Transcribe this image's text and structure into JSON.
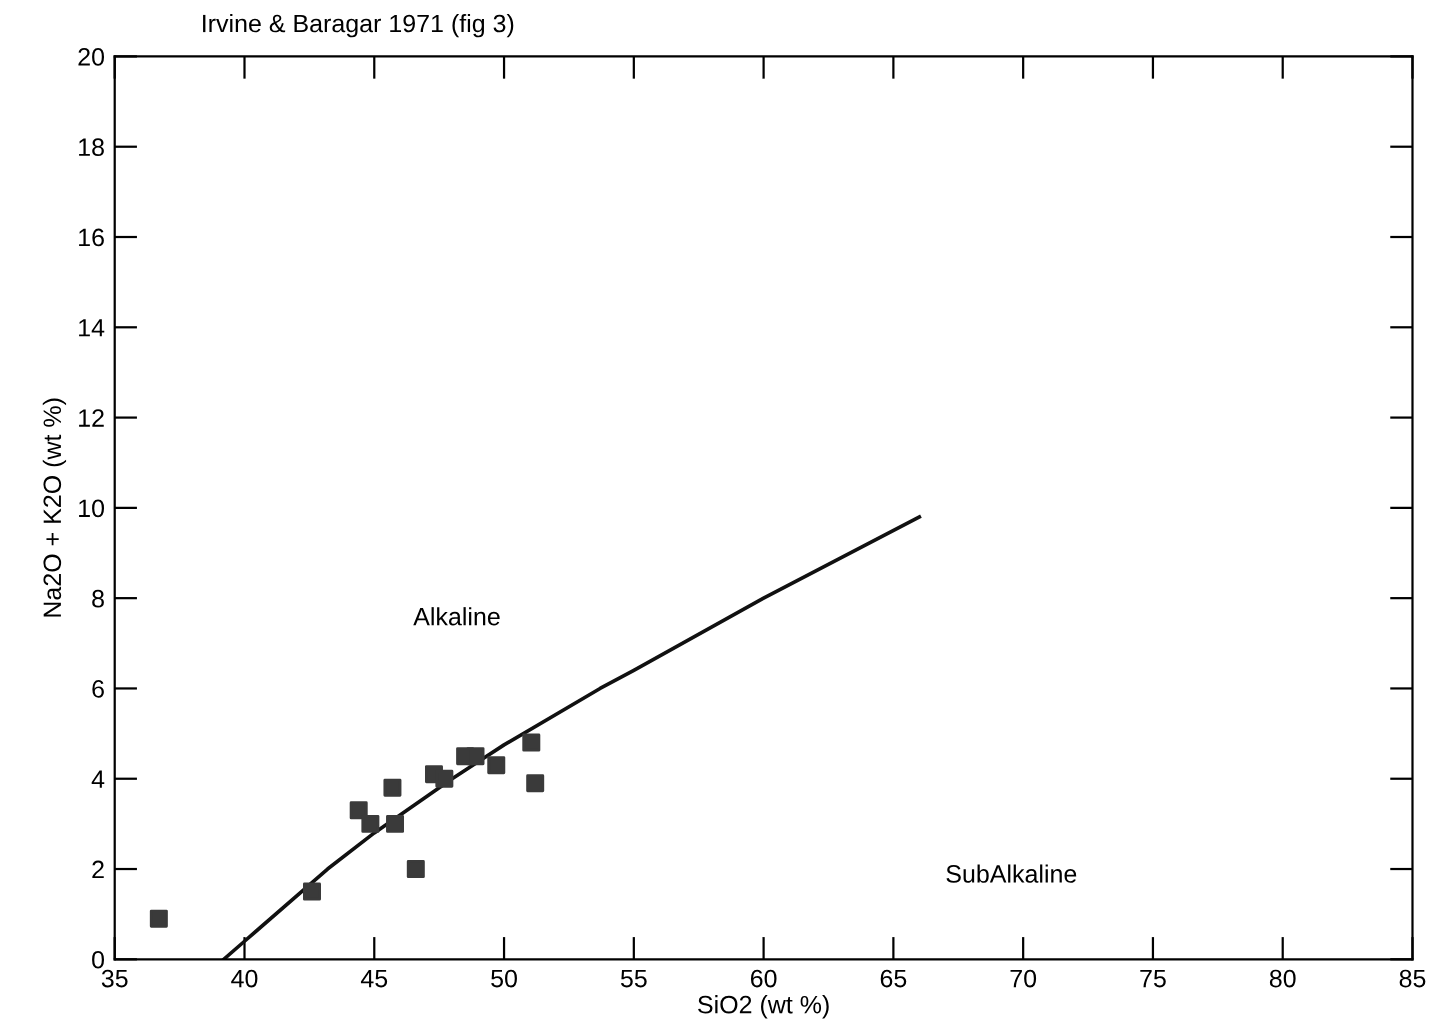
{
  "chart_data": {
    "type": "scatter",
    "title": "Irvine & Baragar 1971 (fig 3)",
    "xlabel": "SiO2 (wt %)",
    "ylabel": "Na2O + K2O (wt %)",
    "xlim": [
      35,
      85
    ],
    "xticks": [
      35,
      40,
      45,
      50,
      55,
      60,
      65,
      70,
      75,
      80,
      85
    ],
    "ylim": [
      0,
      20
    ],
    "yticks": [
      0,
      2,
      4,
      6,
      8,
      10,
      12,
      14,
      16,
      18,
      20
    ],
    "grid": false,
    "legend": false,
    "series": [
      {
        "marker": "square",
        "color": "#3a3a3a",
        "x": [
          36.7,
          42.6,
          44.4,
          44.85,
          45.7,
          45.8,
          46.6,
          47.3,
          47.7,
          48.5,
          48.9,
          49.7,
          51.05,
          51.2
        ],
        "values": [
          0.9,
          1.5,
          3.3,
          3.0,
          3.8,
          3.0,
          2.0,
          4.1,
          4.0,
          4.5,
          4.5,
          4.3,
          4.8,
          3.9
        ]
      },
      {
        "type": "line",
        "color": "#111111",
        "line_style": "solid",
        "marker": "none",
        "x": [
          39.2,
          40,
          43.2,
          45,
          48,
          50,
          53.7,
          55,
          60,
          66
        ],
        "values": [
          0,
          0.4,
          2.0,
          2.8,
          4.0,
          4.75,
          6.0,
          6.4,
          8.0,
          9.8
        ]
      }
    ],
    "annotations": [
      "Alkaline",
      "SubAlkaline"
    ]
  }
}
